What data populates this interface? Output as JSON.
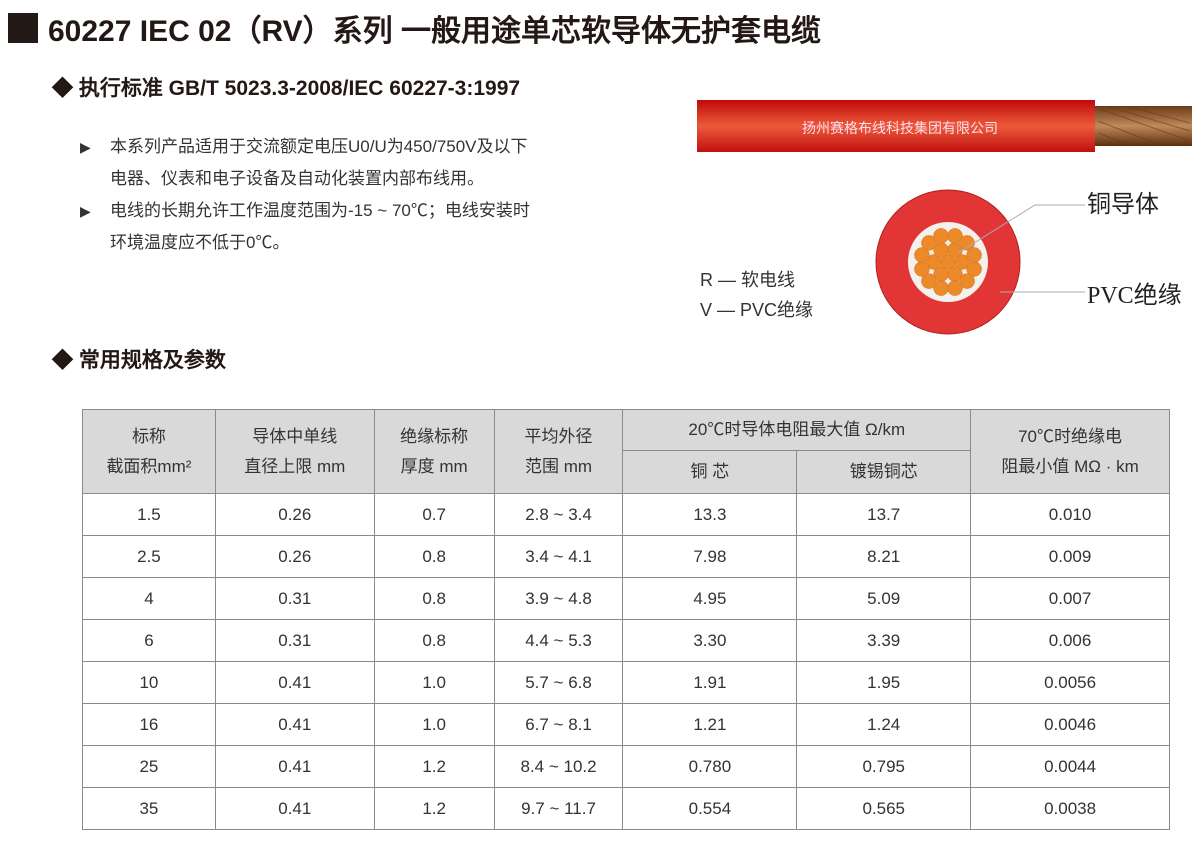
{
  "title": "60227 IEC 02（RV）系列 一般用途单芯软导体无护套电缆",
  "standard": "执行标准 GB/T 5023.3-2008/IEC 60227-3:1997",
  "bullets": [
    {
      "line1": "本系列产品适用于交流额定电压U0/U为450/750V及以下",
      "line2": "电器、仪表和电子设备及自动化装置内部布线用。"
    },
    {
      "line1": "电线的长期允许工作温度范围为-15 ~ 70℃；电线安装时",
      "line2": "环境温度应不低于0℃。"
    }
  ],
  "cable": {
    "print": "扬州赛格布线科技集团有限公司",
    "label_conductor": "铜导体",
    "label_insulation": "PVC绝缘",
    "colors": {
      "jacket": "#e03030",
      "copper": "#e88a2a"
    }
  },
  "legend": [
    "R — 软电线",
    "V — PVC绝缘"
  ],
  "section_title": "常用规格及参数",
  "table": {
    "headers": {
      "c1": [
        "标称",
        "截面积mm²"
      ],
      "c2": [
        "导体中单线",
        "直径上限 mm"
      ],
      "c3": [
        "绝缘标称",
        "厚度 mm"
      ],
      "c4": [
        "平均外径",
        "范围 mm"
      ],
      "c5": "20℃时导体电阻最大值 Ω/km",
      "c5a": "铜 芯",
      "c5b": "镀锡铜芯",
      "c6": [
        "70℃时绝缘电",
        "阻最小值 MΩ · km"
      ]
    },
    "rows": [
      [
        "1.5",
        "0.26",
        "0.7",
        "2.8 ~ 3.4",
        "13.3",
        "13.7",
        "0.010"
      ],
      [
        "2.5",
        "0.26",
        "0.8",
        "3.4 ~ 4.1",
        "7.98",
        "8.21",
        "0.009"
      ],
      [
        "4",
        "0.31",
        "0.8",
        "3.9 ~ 4.8",
        "4.95",
        "5.09",
        "0.007"
      ],
      [
        "6",
        "0.31",
        "0.8",
        "4.4 ~ 5.3",
        "3.30",
        "3.39",
        "0.006"
      ],
      [
        "10",
        "0.41",
        "1.0",
        "5.7 ~ 6.8",
        "1.91",
        "1.95",
        "0.0056"
      ],
      [
        "16",
        "0.41",
        "1.0",
        "6.7 ~ 8.1",
        "1.21",
        "1.24",
        "0.0046"
      ],
      [
        "25",
        "0.41",
        "1.2",
        "8.4 ~ 10.2",
        "0.780",
        "0.795",
        "0.0044"
      ],
      [
        "35",
        "0.41",
        "1.2",
        "9.7 ~ 11.7",
        "0.554",
        "0.565",
        "0.0038"
      ]
    ]
  }
}
